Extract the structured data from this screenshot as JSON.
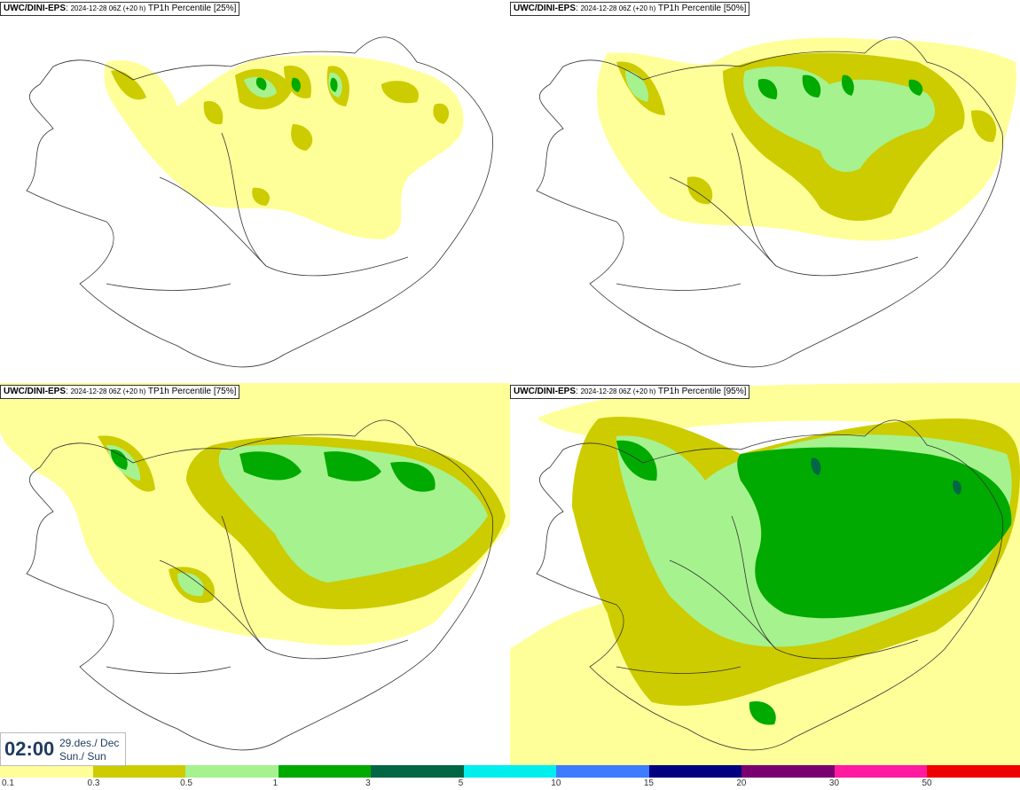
{
  "panels": [
    {
      "model": "UWC/DINI-EPS",
      "run": "2024-12-28 06Z (+20 h)",
      "product": "TP1h Percentile [25%]",
      "level": 1
    },
    {
      "model": "UWC/DINI-EPS",
      "run": "2024-12-28 06Z (+20 h)",
      "product": "TP1h Percentile [50%]",
      "level": 2
    },
    {
      "model": "UWC/DINI-EPS",
      "run": "2024-12-28 06Z (+20 h)",
      "product": "TP1h Percentile [75%]",
      "level": 3
    },
    {
      "model": "UWC/DINI-EPS",
      "run": "2024-12-28 06Z (+20 h)",
      "product": "TP1h Percentile [95%]",
      "level": 4
    }
  ],
  "valid_time": {
    "time": "02:00",
    "date_line": "29.des./ Dec",
    "day_line": "Sun./ Sun"
  },
  "legend": {
    "colors": [
      "#ffff99",
      "#cccc00",
      "#a6f28f",
      "#00aa00",
      "#006644",
      "#00eeee",
      "#3d7bff",
      "#000080",
      "#7a0070",
      "#ff1aa0",
      "#ee0000"
    ],
    "labels": [
      "0.1",
      "0.3",
      "0.5",
      "1",
      "3",
      "5",
      "10",
      "15",
      "20",
      "30",
      "50"
    ]
  }
}
